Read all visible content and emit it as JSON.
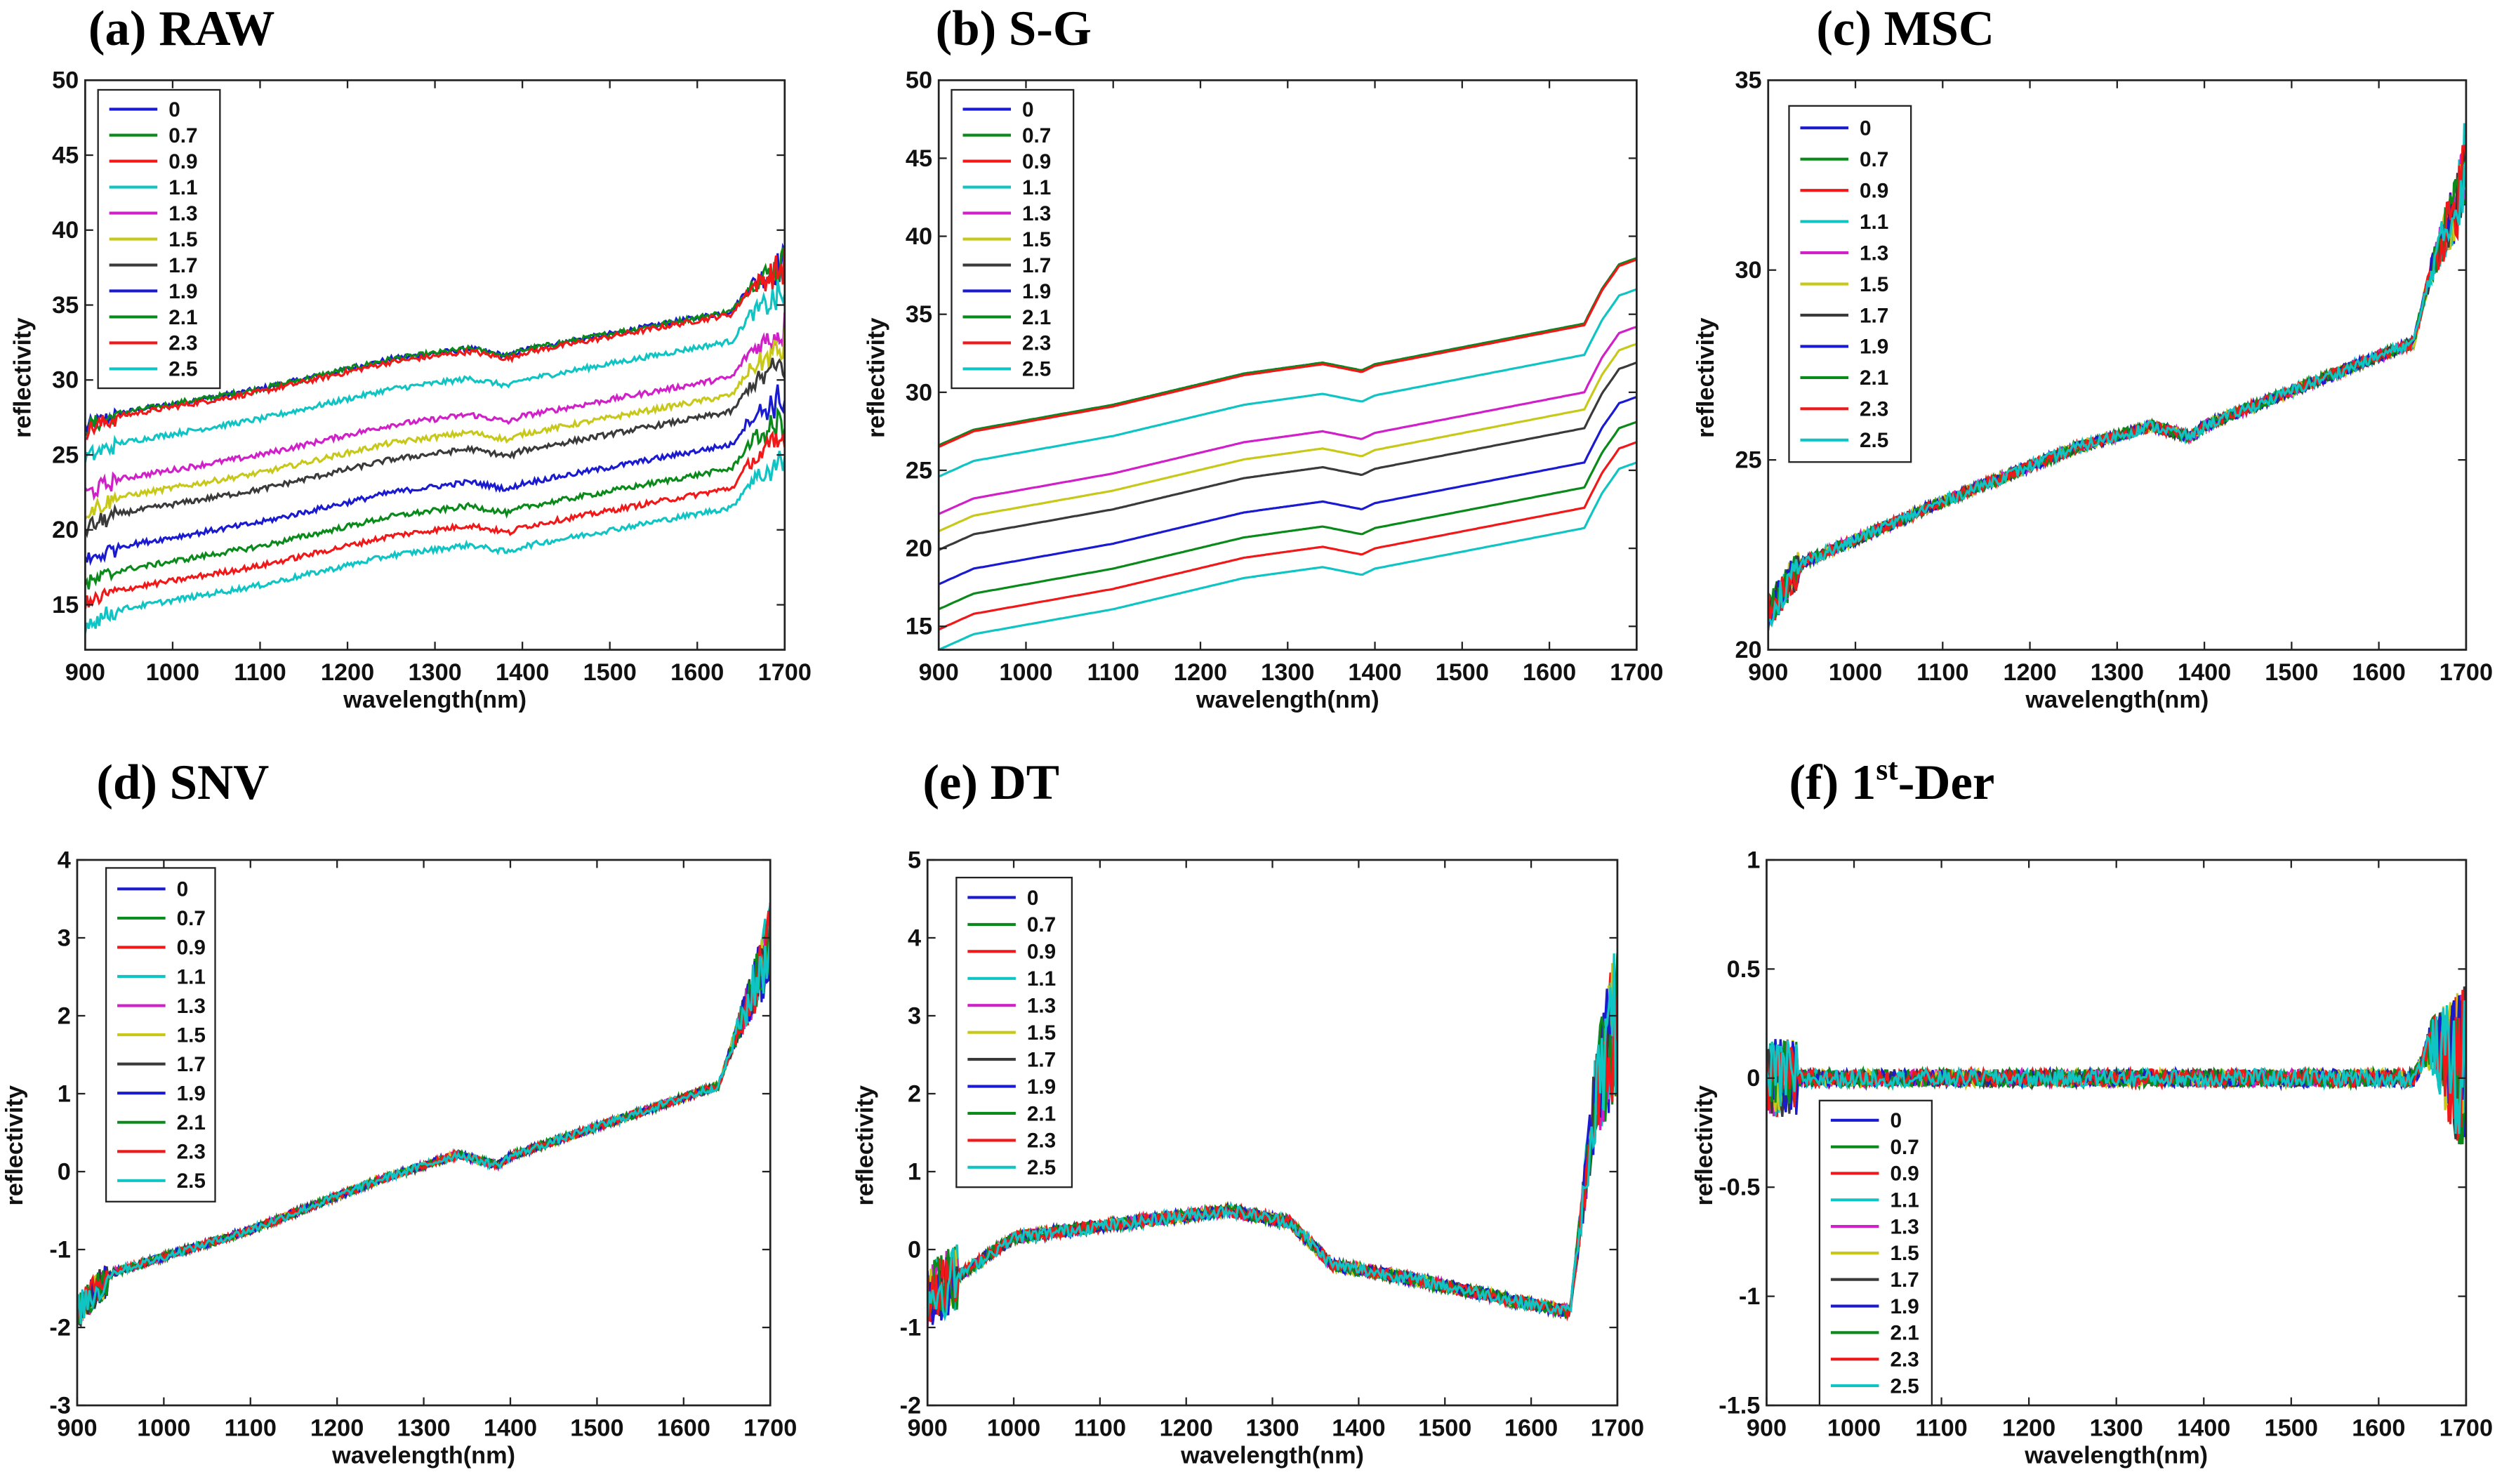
{
  "series_names": [
    "0",
    "0.7",
    "0.9",
    "1.1",
    "1.3",
    "1.5",
    "1.7",
    "1.9",
    "2.1",
    "2.3",
    "2.5"
  ],
  "series_colors": [
    "#1a1ad0",
    "#0a8a1a",
    "#f01818",
    "#10c4c4",
    "#d020c8",
    "#c8c81a",
    "#3a3a3a",
    "#1a1ad0",
    "#0a8a1a",
    "#f01818",
    "#10c4c4"
  ],
  "chart_data": [
    {
      "id": "a",
      "type": "line",
      "title": "(a) RAW",
      "xlabel": "wavelength(nm)",
      "ylabel": "reflectivity",
      "xlim": [
        900,
        1700
      ],
      "ylim": [
        12,
        50
      ],
      "xticks": [
        900,
        1000,
        1100,
        1200,
        1300,
        1400,
        1500,
        1600,
        1700
      ],
      "yticks": [
        15,
        20,
        25,
        30,
        35,
        40,
        45,
        50
      ],
      "legend": "top-left",
      "baseline": [
        [
          900,
          0
        ],
        [
          940,
          1
        ],
        [
          1100,
          2.6
        ],
        [
          1250,
          4.6
        ],
        [
          1340,
          5.3
        ],
        [
          1385,
          4.8
        ],
        [
          1400,
          5.2
        ],
        [
          1640,
          7.8
        ],
        [
          1660,
          9.5
        ],
        [
          1700,
          11
        ]
      ],
      "offsets_at_900nm": [
        26.8,
        26.8,
        26.6,
        24.8,
        22.4,
        21.2,
        20.1,
        17.9,
        16.3,
        15.0,
        13.7
      ],
      "noise": 0.18,
      "end_noise": 1.2
    },
    {
      "id": "b",
      "type": "line",
      "title": "(b) S-G",
      "xlabel": "wavelength(nm)",
      "ylabel": "reflectivity",
      "xlim": [
        900,
        1700
      ],
      "ylim": [
        13.5,
        50
      ],
      "xticks": [
        900,
        1000,
        1100,
        1200,
        1300,
        1400,
        1500,
        1600,
        1700
      ],
      "yticks": [
        15,
        20,
        25,
        30,
        35,
        40,
        45,
        50
      ],
      "legend": "top-left",
      "baseline": [
        [
          900,
          0
        ],
        [
          940,
          1
        ],
        [
          1100,
          2.6
        ],
        [
          1250,
          4.6
        ],
        [
          1340,
          5.3
        ],
        [
          1385,
          4.8
        ],
        [
          1400,
          5.2
        ],
        [
          1640,
          7.8
        ],
        [
          1660,
          10
        ],
        [
          1680,
          11.6
        ],
        [
          1700,
          12
        ]
      ],
      "offsets_at_900nm": [
        26.6,
        26.6,
        26.5,
        24.6,
        22.2,
        21.1,
        19.9,
        17.7,
        16.1,
        14.8,
        13.5
      ],
      "noise": 0,
      "end_noise": 0
    },
    {
      "id": "c",
      "type": "line",
      "title": "(c) MSC",
      "xlabel": "wavelength(nm)",
      "ylabel": "reflectivity",
      "xlim": [
        900,
        1700
      ],
      "ylim": [
        20,
        35
      ],
      "xticks": [
        900,
        1000,
        1100,
        1200,
        1300,
        1400,
        1500,
        1600,
        1700
      ],
      "yticks": [
        20,
        25,
        30,
        35
      ],
      "legend": "top-left",
      "baseline": [
        [
          900,
          21
        ],
        [
          940,
          22.3
        ],
        [
          1100,
          23.9
        ],
        [
          1250,
          25.3
        ],
        [
          1340,
          25.9
        ],
        [
          1385,
          25.6
        ],
        [
          1400,
          25.9
        ],
        [
          1640,
          28.1
        ],
        [
          1660,
          30
        ],
        [
          1690,
          31.8
        ],
        [
          1700,
          33
        ]
      ],
      "offsets_at_900nm": [
        0,
        0,
        0,
        0,
        0,
        0,
        0,
        0,
        0,
        0,
        0
      ],
      "noise": 0.15,
      "end_noise": 1.0
    },
    {
      "id": "d",
      "type": "line",
      "title": "(d) SNV",
      "xlabel": "wavelength(nm)",
      "ylabel": "reflectivity",
      "xlim": [
        900,
        1700
      ],
      "ylim": [
        -3,
        4
      ],
      "xticks": [
        900,
        1000,
        1100,
        1200,
        1300,
        1400,
        1500,
        1600,
        1700
      ],
      "yticks": [
        -3,
        -2,
        -1,
        0,
        1,
        2,
        3,
        4
      ],
      "legend": "top-left",
      "baseline": [
        [
          900,
          -1.8
        ],
        [
          940,
          -1.3
        ],
        [
          1100,
          -0.75
        ],
        [
          1250,
          -0.1
        ],
        [
          1340,
          0.22
        ],
        [
          1385,
          0.08
        ],
        [
          1400,
          0.2
        ],
        [
          1640,
          1.1
        ],
        [
          1665,
          1.9
        ],
        [
          1690,
          2.6
        ],
        [
          1700,
          3
        ]
      ],
      "offsets_at_900nm": [
        0,
        0,
        0,
        0,
        0,
        0,
        0,
        0,
        0,
        0,
        0
      ],
      "noise": 0.05,
      "end_noise": 0.5
    },
    {
      "id": "e",
      "type": "line",
      "title": "(e) DT",
      "xlabel": "wavelength(nm)",
      "ylabel": "reflectivity",
      "xlim": [
        900,
        1700
      ],
      "ylim": [
        -2,
        5
      ],
      "xticks": [
        900,
        1000,
        1100,
        1200,
        1300,
        1400,
        1500,
        1600,
        1700
      ],
      "yticks": [
        -2,
        -1,
        0,
        1,
        2,
        3,
        4,
        5
      ],
      "legend": "top-left",
      "baseline": [
        [
          900,
          -0.6
        ],
        [
          940,
          -0.3
        ],
        [
          1000,
          0.15
        ],
        [
          1100,
          0.3
        ],
        [
          1250,
          0.5
        ],
        [
          1320,
          0.35
        ],
        [
          1370,
          -0.2
        ],
        [
          1450,
          -0.35
        ],
        [
          1600,
          -0.7
        ],
        [
          1645,
          -0.8
        ],
        [
          1675,
          2
        ],
        [
          1700,
          3
        ]
      ],
      "offsets_at_900nm": [
        0,
        0,
        0,
        0,
        0,
        0,
        0,
        0,
        0,
        0,
        0
      ],
      "noise": 0.08,
      "end_noise": 1.0
    },
    {
      "id": "f",
      "type": "line",
      "title": "(f) 1st-Der",
      "xlabel": "wavelength(nm)",
      "ylabel": "reflectivity",
      "xlim": [
        900,
        1700
      ],
      "ylim": [
        -1.5,
        1
      ],
      "xticks": [
        900,
        1000,
        1100,
        1200,
        1300,
        1400,
        1500,
        1600,
        1700
      ],
      "yticks": [
        -1.5,
        -1,
        -0.5,
        0,
        0.5,
        1
      ],
      "legend": "bottom-left",
      "baseline": [
        [
          900,
          0
        ],
        [
          1640,
          0
        ],
        [
          1660,
          0.15
        ],
        [
          1700,
          0
        ]
      ],
      "offsets_at_900nm": [
        0,
        0,
        0,
        0,
        0,
        0,
        0,
        0,
        0,
        0,
        0
      ],
      "noise": 0.04,
      "end_noise": 0.4
    }
  ]
}
